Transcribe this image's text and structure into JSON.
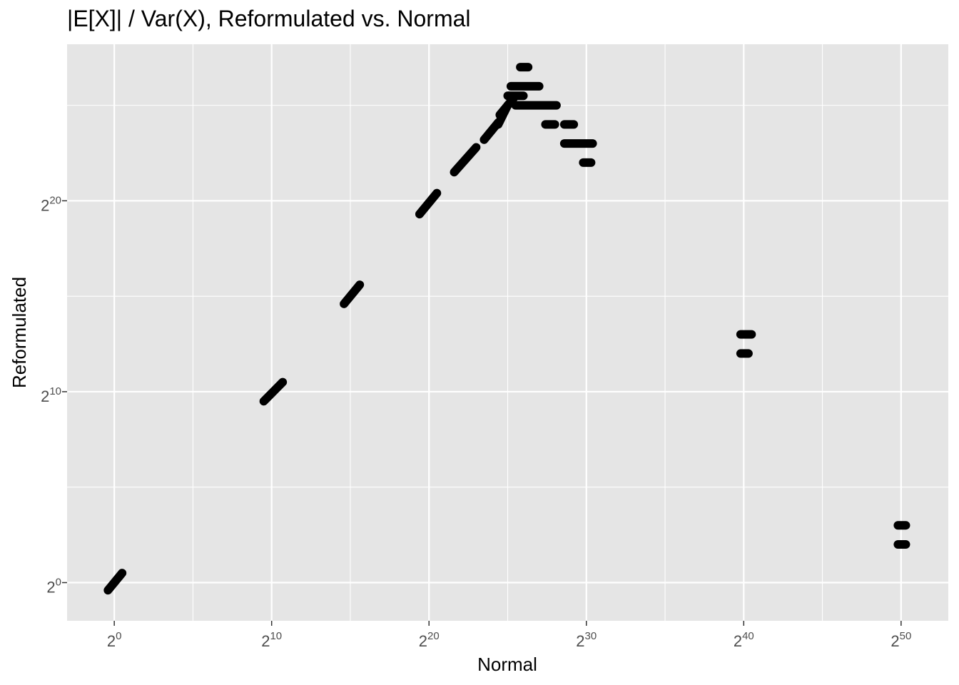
{
  "title": "|E[X]| / Var(X), Reformulated vs. Normal",
  "chart_data": {
    "type": "scatter",
    "title": "|E[X]| / Var(X), Reformulated vs. Normal",
    "xlabel": "Normal",
    "ylabel": "Reformulated",
    "x_scale": "log2",
    "y_scale": "log2",
    "xlim_log2": [
      -3,
      53
    ],
    "ylim_log2": [
      -2,
      28.2
    ],
    "x_ticks": [
      {
        "base": "2",
        "exp": "0",
        "log2": 0
      },
      {
        "base": "2",
        "exp": "10",
        "log2": 10
      },
      {
        "base": "2",
        "exp": "20",
        "log2": 20
      },
      {
        "base": "2",
        "exp": "30",
        "log2": 30
      },
      {
        "base": "2",
        "exp": "40",
        "log2": 40
      },
      {
        "base": "2",
        "exp": "50",
        "log2": 50
      }
    ],
    "y_ticks": [
      {
        "base": "2",
        "exp": "0",
        "log2": 0
      },
      {
        "base": "2",
        "exp": "10",
        "log2": 10
      },
      {
        "base": "2",
        "exp": "20",
        "log2": 20
      }
    ],
    "grid": true,
    "point_color": "#000000",
    "panel_color": "#e5e5e5",
    "grid_color": "#ffffff",
    "series": [
      {
        "segments": [
          {
            "x1": -0.4,
            "y1": -0.4,
            "x2": 0.5,
            "y2": 0.5
          },
          {
            "x1": 9.5,
            "y1": 9.5,
            "x2": 10.7,
            "y2": 10.5
          },
          {
            "x1": 14.6,
            "y1": 14.6,
            "x2": 15.6,
            "y2": 15.6
          },
          {
            "x1": 19.4,
            "y1": 19.3,
            "x2": 20.5,
            "y2": 20.4
          },
          {
            "x1": 21.6,
            "y1": 21.5,
            "x2": 23.0,
            "y2": 22.8
          },
          {
            "x1": 23.5,
            "y1": 23.2,
            "x2": 24.4,
            "y2": 24.1
          },
          {
            "x1": 24.4,
            "y1": 24.0,
            "x2": 25.0,
            "y2": 25.0
          },
          {
            "x1": 24.5,
            "y1": 24.5,
            "x2": 25.4,
            "y2": 25.4
          },
          {
            "x1": 25.8,
            "y1": 27.0,
            "x2": 26.3,
            "y2": 27.0
          },
          {
            "x1": 25.2,
            "y1": 26.0,
            "x2": 27.0,
            "y2": 26.0
          },
          {
            "x1": 25.0,
            "y1": 25.5,
            "x2": 26.0,
            "y2": 25.5
          },
          {
            "x1": 25.5,
            "y1": 25.0,
            "x2": 28.1,
            "y2": 25.0
          },
          {
            "x1": 27.4,
            "y1": 24.0,
            "x2": 28.0,
            "y2": 24.0
          },
          {
            "x1": 28.6,
            "y1": 24.0,
            "x2": 29.2,
            "y2": 24.0
          },
          {
            "x1": 28.6,
            "y1": 23.0,
            "x2": 30.4,
            "y2": 23.0
          },
          {
            "x1": 29.8,
            "y1": 22.0,
            "x2": 30.3,
            "y2": 22.0
          },
          {
            "x1": 39.8,
            "y1": 13.0,
            "x2": 40.5,
            "y2": 13.0
          },
          {
            "x1": 39.8,
            "y1": 12.0,
            "x2": 40.3,
            "y2": 12.0
          },
          {
            "x1": 49.8,
            "y1": 3.0,
            "x2": 50.3,
            "y2": 3.0
          },
          {
            "x1": 49.8,
            "y1": 2.0,
            "x2": 50.3,
            "y2": 2.0
          }
        ]
      }
    ]
  }
}
